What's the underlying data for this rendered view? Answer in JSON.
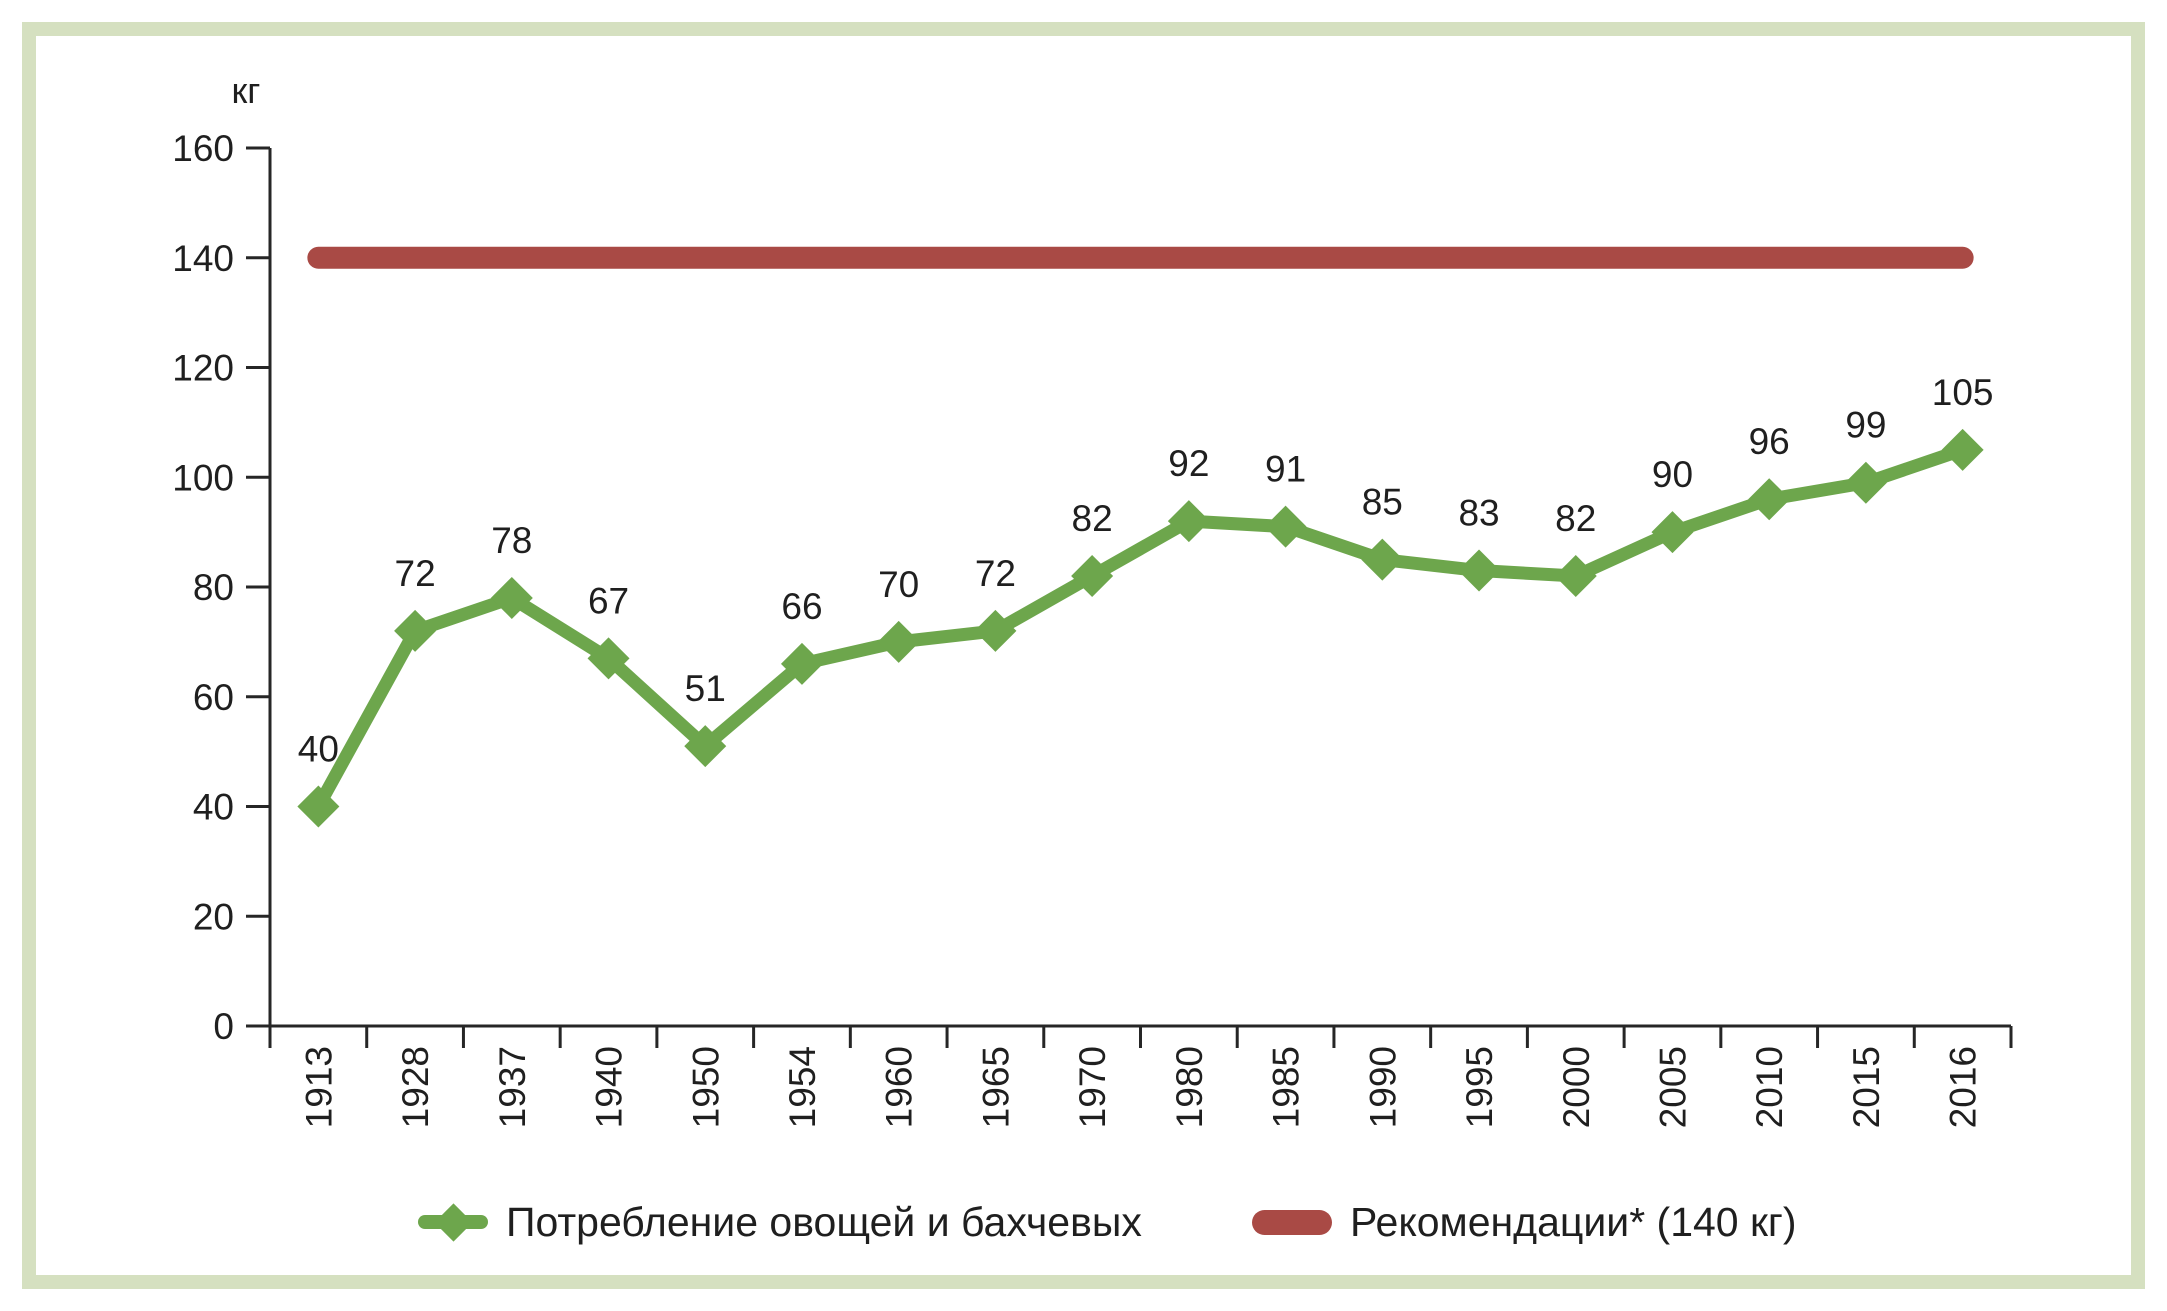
{
  "chart_data": {
    "type": "line",
    "title": "",
    "xlabel": "",
    "ylabel": "кг",
    "categories": [
      "1913",
      "1928",
      "1937",
      "1940",
      "1950",
      "1954",
      "1960",
      "1965",
      "1970",
      "1980",
      "1985",
      "1990",
      "1995",
      "2000",
      "2005",
      "2010",
      "2015",
      "2016"
    ],
    "series": [
      {
        "name": "Потребление овощей и бахчевых",
        "type": "line",
        "marker": "diamond",
        "color": "#6da64c",
        "values": [
          40,
          72,
          78,
          67,
          51,
          66,
          70,
          72,
          82,
          92,
          91,
          85,
          83,
          82,
          90,
          96,
          99,
          105
        ]
      },
      {
        "name": "Рекомендации* (140 кг)",
        "type": "constant-line",
        "color": "#a94a45",
        "value": 140
      }
    ],
    "data_labels": true,
    "ylim": [
      0,
      160
    ],
    "ytick_labels": [
      "0",
      "20",
      "40",
      "60",
      "80",
      "100",
      "120",
      "140",
      "160"
    ],
    "grid": false,
    "legend_position": "bottom"
  },
  "colors": {
    "frame_border": "#d5e0c0",
    "axis": "#262626",
    "text": "#1f1f1f",
    "series_consumption": "#6da64c",
    "series_recommendation": "#a94a45"
  }
}
